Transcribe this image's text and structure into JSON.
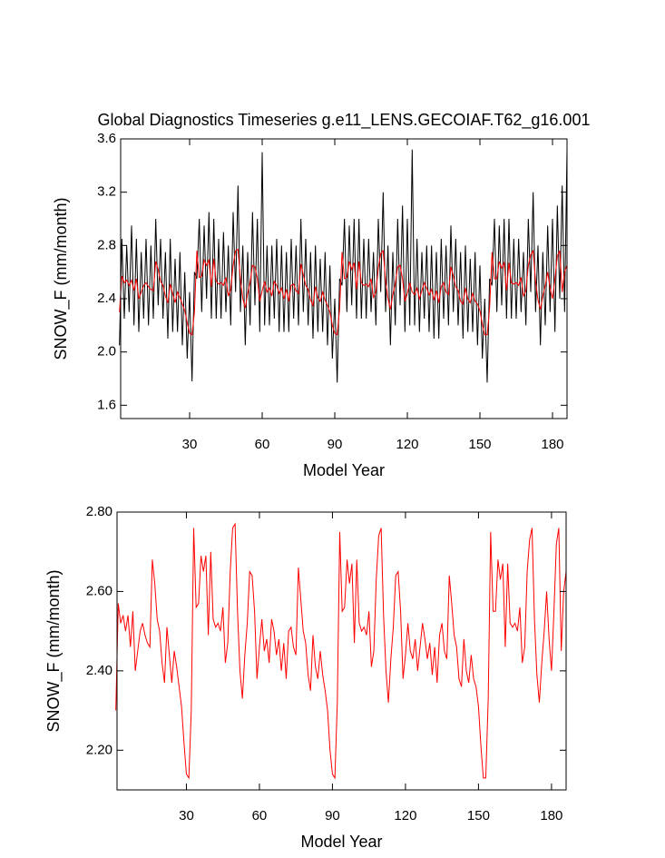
{
  "chart_data": [
    {
      "type": "line",
      "title": "Global Diagnostics Timeseries g.e11_LENS.GECOIAF.T62_g16.001",
      "x_label": "Model Year",
      "y_label": "SNOW_F (mm/month)",
      "xlim": [
        1.5,
        186
      ],
      "xticks": [
        30,
        60,
        90,
        120,
        150,
        180
      ],
      "ylim": [
        1.5,
        3.6
      ],
      "yticks": [
        1.6,
        2.0,
        2.4,
        2.8,
        3.2,
        3.6
      ],
      "yticks_labels": [
        "1.6",
        "2.0",
        "2.4",
        "2.8",
        "3.2",
        "3.6"
      ],
      "x": [
        1,
        2,
        3,
        4,
        5,
        6,
        7,
        8,
        9,
        10,
        11,
        12,
        13,
        14,
        15,
        16,
        17,
        18,
        19,
        20,
        21,
        22,
        23,
        24,
        25,
        26,
        27,
        28,
        29,
        30,
        31,
        32,
        33,
        34,
        35,
        36,
        37,
        38,
        39,
        40,
        41,
        42,
        43,
        44,
        45,
        46,
        47,
        48,
        49,
        50,
        51,
        52,
        53,
        54,
        55,
        56,
        57,
        58,
        59,
        60,
        61,
        62,
        63,
        64,
        65,
        66,
        67,
        68,
        69,
        70,
        71,
        72,
        73,
        74,
        75,
        76,
        77,
        78,
        79,
        80,
        81,
        82,
        83,
        84,
        85,
        86,
        87,
        88,
        89,
        90,
        91,
        92,
        93,
        94,
        95,
        96,
        97,
        98,
        99,
        100,
        101,
        102,
        103,
        104,
        105,
        106,
        107,
        108,
        109,
        110,
        111,
        112,
        113,
        114,
        115,
        116,
        117,
        118,
        119,
        120,
        121,
        122,
        123,
        124,
        125,
        126,
        127,
        128,
        129,
        130,
        131,
        132,
        133,
        134,
        135,
        136,
        137,
        138,
        139,
        140,
        141,
        142,
        143,
        144,
        145,
        146,
        147,
        148,
        149,
        150,
        151,
        152,
        153,
        154,
        155,
        156,
        157,
        158,
        159,
        160,
        161,
        162,
        163,
        164,
        165,
        166,
        167,
        168,
        169,
        170,
        171,
        172,
        173,
        174,
        175,
        176,
        177,
        178,
        179,
        180,
        181,
        182,
        183,
        184,
        185,
        186
      ],
      "series": [
        {
          "color": "#000000",
          "values": [
            2.05,
            2.85,
            2.25,
            2.8,
            2.3,
            2.95,
            2.2,
            2.85,
            2.15,
            2.75,
            2.25,
            2.85,
            2.2,
            2.8,
            2.25,
            3.0,
            2.35,
            2.85,
            2.25,
            2.75,
            2.1,
            2.85,
            2.15,
            2.7,
            2.15,
            2.75,
            2.05,
            2.6,
            1.95,
            2.45,
            1.78,
            2.6,
            2.55,
            3.0,
            2.3,
            2.95,
            2.4,
            3.05,
            2.25,
            3.0,
            2.25,
            2.85,
            2.25,
            2.9,
            2.3,
            2.8,
            2.2,
            3.05,
            2.45,
            3.25,
            2.3,
            2.8,
            2.05,
            2.75,
            2.2,
            3.05,
            2.35,
            3.0,
            2.15,
            3.5,
            2.2,
            2.8,
            2.2,
            2.8,
            2.25,
            2.85,
            2.15,
            2.8,
            2.15,
            2.75,
            2.15,
            2.85,
            2.25,
            2.8,
            2.2,
            3.0,
            2.3,
            2.85,
            2.2,
            2.75,
            2.1,
            2.8,
            2.15,
            2.7,
            2.15,
            2.75,
            2.05,
            2.65,
            1.95,
            2.4,
            1.77,
            2.55,
            2.5,
            3.0,
            2.3,
            2.95,
            2.35,
            3.0,
            2.25,
            3.0,
            2.25,
            2.85,
            2.25,
            2.85,
            2.3,
            2.75,
            2.2,
            3.0,
            2.45,
            3.2,
            2.3,
            2.8,
            2.05,
            2.75,
            2.2,
            3.0,
            2.35,
            3.1,
            2.15,
            3.0,
            2.2,
            3.52,
            2.2,
            2.85,
            2.15,
            2.75,
            2.25,
            2.8,
            2.15,
            2.8,
            2.1,
            2.75,
            2.1,
            2.85,
            2.25,
            2.8,
            2.2,
            2.95,
            2.3,
            2.85,
            2.2,
            2.75,
            2.1,
            2.8,
            2.15,
            2.7,
            2.15,
            2.75,
            2.05,
            2.65,
            1.95,
            2.4,
            1.77,
            2.55,
            2.5,
            3.0,
            2.3,
            2.95,
            2.35,
            3.0,
            2.25,
            3.0,
            2.25,
            2.85,
            2.25,
            2.85,
            2.3,
            2.75,
            2.2,
            3.0,
            2.45,
            3.2,
            2.3,
            2.8,
            2.05,
            2.75,
            2.2,
            2.95,
            2.3,
            3.0,
            2.15,
            3.1,
            2.4,
            3.25,
            2.3,
            3.52
          ]
        },
        {
          "color": "#ff0000",
          "values": [
            2.3,
            2.57,
            2.52,
            2.54,
            2.5,
            2.54,
            2.46,
            2.55,
            2.4,
            2.45,
            2.5,
            2.52,
            2.49,
            2.47,
            2.46,
            2.68,
            2.62,
            2.53,
            2.5,
            2.42,
            2.37,
            2.51,
            2.44,
            2.37,
            2.45,
            2.41,
            2.36,
            2.31,
            2.22,
            2.14,
            2.13,
            2.3,
            2.76,
            2.56,
            2.57,
            2.69,
            2.65,
            2.69,
            2.49,
            2.7,
            2.53,
            2.51,
            2.52,
            2.5,
            2.56,
            2.42,
            2.47,
            2.65,
            2.76,
            2.77,
            2.55,
            2.4,
            2.33,
            2.44,
            2.52,
            2.65,
            2.64,
            2.55,
            2.38,
            2.46,
            2.53,
            2.45,
            2.48,
            2.42,
            2.53,
            2.5,
            2.44,
            2.48,
            2.4,
            2.47,
            2.38,
            2.5,
            2.51,
            2.46,
            2.44,
            2.66,
            2.58,
            2.5,
            2.47,
            2.39,
            2.35,
            2.49,
            2.41,
            2.38,
            2.45,
            2.39,
            2.35,
            2.3,
            2.2,
            2.14,
            2.13,
            2.32,
            2.75,
            2.55,
            2.56,
            2.68,
            2.62,
            2.67,
            2.47,
            2.68,
            2.52,
            2.5,
            2.51,
            2.49,
            2.55,
            2.41,
            2.45,
            2.63,
            2.74,
            2.76,
            2.54,
            2.4,
            2.32,
            2.43,
            2.51,
            2.64,
            2.65,
            2.55,
            2.38,
            2.44,
            2.52,
            2.45,
            2.43,
            2.48,
            2.4,
            2.46,
            2.52,
            2.48,
            2.43,
            2.47,
            2.39,
            2.46,
            2.37,
            2.49,
            2.52,
            2.45,
            2.43,
            2.64,
            2.57,
            2.49,
            2.46,
            2.38,
            2.36,
            2.48,
            2.4,
            2.37,
            2.44,
            2.38,
            2.36,
            2.31,
            2.21,
            2.13,
            2.13,
            2.33,
            2.75,
            2.55,
            2.55,
            2.68,
            2.63,
            2.67,
            2.46,
            2.67,
            2.52,
            2.51,
            2.52,
            2.5,
            2.56,
            2.42,
            2.46,
            2.65,
            2.73,
            2.76,
            2.53,
            2.39,
            2.32,
            2.42,
            2.5,
            2.6,
            2.48,
            2.4,
            2.55,
            2.72,
            2.76,
            2.45,
            2.6,
            2.65
          ]
        }
      ]
    },
    {
      "type": "line",
      "x_label": "Model Year",
      "y_label": "SNOW_F (mm/month)",
      "xlim": [
        1.5,
        186
      ],
      "xticks": [
        30,
        60,
        90,
        120,
        150,
        180
      ],
      "ylim": [
        2.1,
        2.8
      ],
      "yticks": [
        {
          "value": 2.2,
          "label": "2.20"
        },
        {
          "value": 2.4,
          "label": "2.40"
        },
        {
          "value": 2.6,
          "label": "2.60"
        },
        {
          "value": 2.8,
          "label": "2.80"
        }
      ],
      "x": [
        1,
        2,
        3,
        4,
        5,
        6,
        7,
        8,
        9,
        10,
        11,
        12,
        13,
        14,
        15,
        16,
        17,
        18,
        19,
        20,
        21,
        22,
        23,
        24,
        25,
        26,
        27,
        28,
        29,
        30,
        31,
        32,
        33,
        34,
        35,
        36,
        37,
        38,
        39,
        40,
        41,
        42,
        43,
        44,
        45,
        46,
        47,
        48,
        49,
        50,
        51,
        52,
        53,
        54,
        55,
        56,
        57,
        58,
        59,
        60,
        61,
        62,
        63,
        64,
        65,
        66,
        67,
        68,
        69,
        70,
        71,
        72,
        73,
        74,
        75,
        76,
        77,
        78,
        79,
        80,
        81,
        82,
        83,
        84,
        85,
        86,
        87,
        88,
        89,
        90,
        91,
        92,
        93,
        94,
        95,
        96,
        97,
        98,
        99,
        100,
        101,
        102,
        103,
        104,
        105,
        106,
        107,
        108,
        109,
        110,
        111,
        112,
        113,
        114,
        115,
        116,
        117,
        118,
        119,
        120,
        121,
        122,
        123,
        124,
        125,
        126,
        127,
        128,
        129,
        130,
        131,
        132,
        133,
        134,
        135,
        136,
        137,
        138,
        139,
        140,
        141,
        142,
        143,
        144,
        145,
        146,
        147,
        148,
        149,
        150,
        151,
        152,
        153,
        154,
        155,
        156,
        157,
        158,
        159,
        160,
        161,
        162,
        163,
        164,
        165,
        166,
        167,
        168,
        169,
        170,
        171,
        172,
        173,
        174,
        175,
        176,
        177,
        178,
        179,
        180,
        181,
        182,
        183,
        184,
        185,
        186
      ],
      "series": [
        {
          "color": "#ff0000",
          "values": [
            2.3,
            2.57,
            2.52,
            2.54,
            2.5,
            2.54,
            2.46,
            2.55,
            2.4,
            2.45,
            2.5,
            2.52,
            2.49,
            2.47,
            2.46,
            2.68,
            2.62,
            2.53,
            2.5,
            2.42,
            2.37,
            2.51,
            2.44,
            2.37,
            2.45,
            2.41,
            2.36,
            2.31,
            2.22,
            2.14,
            2.13,
            2.3,
            2.76,
            2.56,
            2.57,
            2.69,
            2.65,
            2.69,
            2.49,
            2.7,
            2.53,
            2.51,
            2.52,
            2.5,
            2.56,
            2.42,
            2.47,
            2.65,
            2.76,
            2.77,
            2.55,
            2.4,
            2.33,
            2.44,
            2.52,
            2.65,
            2.64,
            2.55,
            2.38,
            2.46,
            2.53,
            2.45,
            2.48,
            2.42,
            2.53,
            2.5,
            2.44,
            2.48,
            2.4,
            2.47,
            2.38,
            2.5,
            2.51,
            2.46,
            2.44,
            2.66,
            2.58,
            2.5,
            2.47,
            2.39,
            2.35,
            2.49,
            2.41,
            2.38,
            2.45,
            2.39,
            2.35,
            2.3,
            2.2,
            2.14,
            2.13,
            2.32,
            2.75,
            2.55,
            2.56,
            2.68,
            2.62,
            2.67,
            2.47,
            2.68,
            2.52,
            2.5,
            2.51,
            2.49,
            2.55,
            2.41,
            2.45,
            2.63,
            2.74,
            2.76,
            2.54,
            2.4,
            2.32,
            2.43,
            2.51,
            2.64,
            2.65,
            2.55,
            2.38,
            2.44,
            2.52,
            2.45,
            2.43,
            2.48,
            2.4,
            2.46,
            2.52,
            2.48,
            2.43,
            2.47,
            2.39,
            2.46,
            2.37,
            2.49,
            2.52,
            2.45,
            2.43,
            2.64,
            2.57,
            2.49,
            2.46,
            2.38,
            2.36,
            2.48,
            2.4,
            2.37,
            2.44,
            2.38,
            2.36,
            2.31,
            2.21,
            2.13,
            2.13,
            2.33,
            2.75,
            2.55,
            2.55,
            2.68,
            2.63,
            2.67,
            2.46,
            2.67,
            2.52,
            2.51,
            2.52,
            2.5,
            2.56,
            2.42,
            2.46,
            2.65,
            2.73,
            2.76,
            2.53,
            2.39,
            2.32,
            2.42,
            2.5,
            2.6,
            2.48,
            2.4,
            2.55,
            2.72,
            2.76,
            2.45,
            2.6,
            2.65
          ]
        }
      ]
    }
  ]
}
